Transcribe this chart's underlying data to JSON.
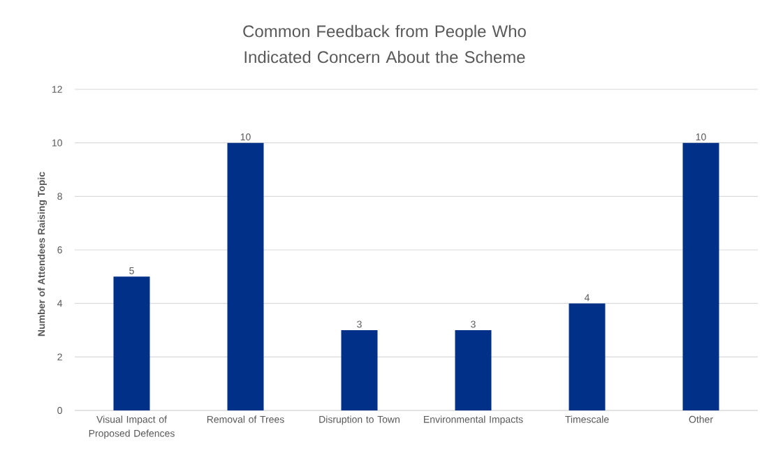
{
  "chart_data": {
    "type": "bar",
    "title": "Common Feedback from People Who Indicated Concern About the Scheme",
    "ylabel": "Number of Attendees Raising Topic",
    "categories": [
      "Visual Impact of Proposed Defences",
      "Removal of Trees",
      "Disruption to Town",
      "Environmental Impacts",
      "Timescale",
      "Other"
    ],
    "values": [
      5,
      10,
      3,
      3,
      4,
      10
    ],
    "color": "#003087",
    "ylim": [
      0,
      12
    ],
    "yticks": [
      0,
      2,
      4,
      6,
      8,
      10,
      12
    ],
    "grid": "y",
    "data_labels": true
  }
}
